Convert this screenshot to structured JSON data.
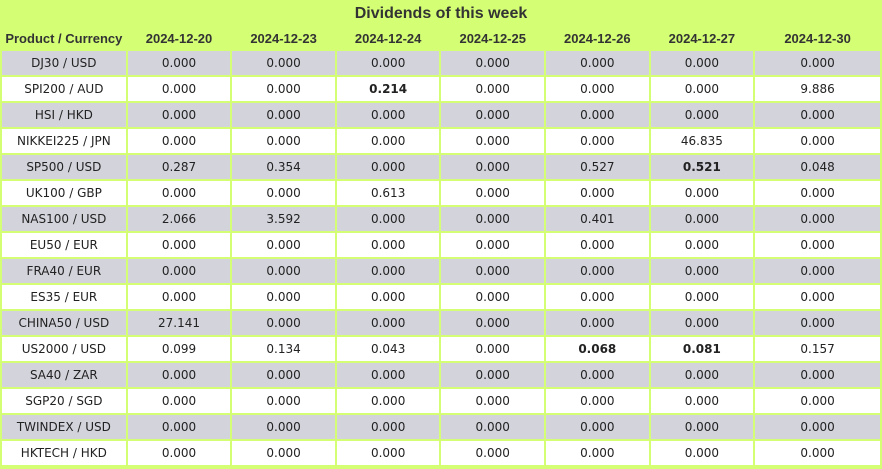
{
  "title": "Dividends of this week",
  "header": {
    "product_label": "Product / Currency",
    "dates": [
      "2024-12-20",
      "2024-12-23",
      "2024-12-24",
      "2024-12-25",
      "2024-12-26",
      "2024-12-27",
      "2024-12-30"
    ]
  },
  "rows": [
    {
      "product": "DJ30 / USD",
      "values": [
        "0.000",
        "0.000",
        "0.000",
        "0.000",
        "0.000",
        "0.000",
        "0.000"
      ],
      "bold": []
    },
    {
      "product": "SPI200 / AUD",
      "values": [
        "0.000",
        "0.000",
        "0.214",
        "0.000",
        "0.000",
        "0.000",
        "9.886"
      ],
      "bold": [
        2
      ]
    },
    {
      "product": "HSI / HKD",
      "values": [
        "0.000",
        "0.000",
        "0.000",
        "0.000",
        "0.000",
        "0.000",
        "0.000"
      ],
      "bold": []
    },
    {
      "product": "NIKKEI225 / JPN",
      "values": [
        "0.000",
        "0.000",
        "0.000",
        "0.000",
        "0.000",
        "46.835",
        "0.000"
      ],
      "bold": []
    },
    {
      "product": "SP500 / USD",
      "values": [
        "0.287",
        "0.354",
        "0.000",
        "0.000",
        "0.527",
        "0.521",
        "0.048"
      ],
      "bold": [
        5
      ]
    },
    {
      "product": "UK100 / GBP",
      "values": [
        "0.000",
        "0.000",
        "0.613",
        "0.000",
        "0.000",
        "0.000",
        "0.000"
      ],
      "bold": []
    },
    {
      "product": "NAS100 / USD",
      "values": [
        "2.066",
        "3.592",
        "0.000",
        "0.000",
        "0.401",
        "0.000",
        "0.000"
      ],
      "bold": []
    },
    {
      "product": "EU50 / EUR",
      "values": [
        "0.000",
        "0.000",
        "0.000",
        "0.000",
        "0.000",
        "0.000",
        "0.000"
      ],
      "bold": []
    },
    {
      "product": "FRA40 / EUR",
      "values": [
        "0.000",
        "0.000",
        "0.000",
        "0.000",
        "0.000",
        "0.000",
        "0.000"
      ],
      "bold": []
    },
    {
      "product": "ES35 / EUR",
      "values": [
        "0.000",
        "0.000",
        "0.000",
        "0.000",
        "0.000",
        "0.000",
        "0.000"
      ],
      "bold": []
    },
    {
      "product": "CHINA50 / USD",
      "values": [
        "27.141",
        "0.000",
        "0.000",
        "0.000",
        "0.000",
        "0.000",
        "0.000"
      ],
      "bold": []
    },
    {
      "product": "US2000 / USD",
      "values": [
        "0.099",
        "0.134",
        "0.043",
        "0.000",
        "0.068",
        "0.081",
        "0.157"
      ],
      "bold": [
        4,
        5
      ]
    },
    {
      "product": "SA40 / ZAR",
      "values": [
        "0.000",
        "0.000",
        "0.000",
        "0.000",
        "0.000",
        "0.000",
        "0.000"
      ],
      "bold": []
    },
    {
      "product": "SGP20 / SGD",
      "values": [
        "0.000",
        "0.000",
        "0.000",
        "0.000",
        "0.000",
        "0.000",
        "0.000"
      ],
      "bold": []
    },
    {
      "product": "TWINDEX / USD",
      "values": [
        "0.000",
        "0.000",
        "0.000",
        "0.000",
        "0.000",
        "0.000",
        "0.000"
      ],
      "bold": []
    },
    {
      "product": "HKTECH / HKD",
      "values": [
        "0.000",
        "0.000",
        "0.000",
        "0.000",
        "0.000",
        "0.000",
        "0.000"
      ],
      "bold": []
    }
  ],
  "colors": {
    "accent_green": "#d4ff75",
    "row_gray": "#d3d3dc",
    "row_white": "#ffffff"
  }
}
